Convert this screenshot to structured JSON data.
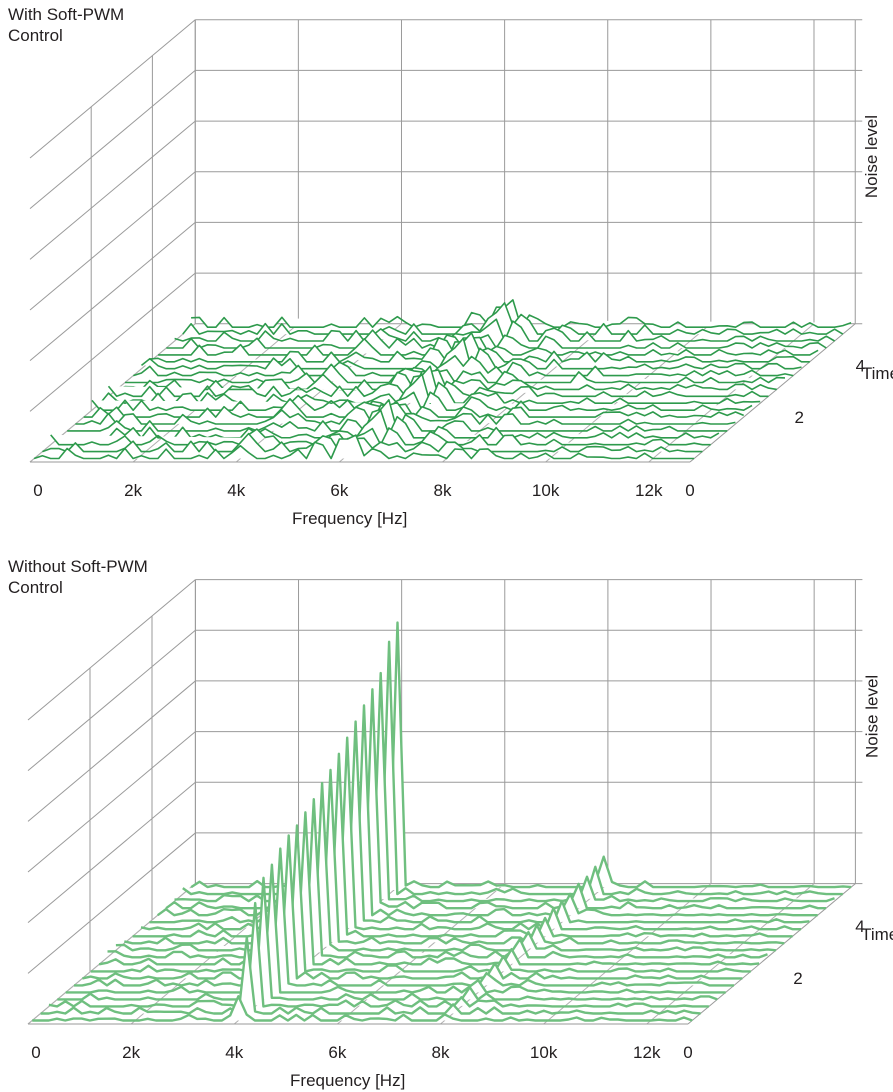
{
  "chart_data": [
    {
      "type": "line",
      "subtype": "3d-waterfall",
      "title": "With Soft-PWM Control",
      "xlabel": "Frequency [Hz]",
      "ylabel": "Time [s]",
      "zlabel": "Noise level",
      "xlim": [
        0,
        12800
      ],
      "ylim": [
        0,
        5.4
      ],
      "x_ticks": [
        "0",
        "2k",
        "4k",
        "6k",
        "8k",
        "10k",
        "12k"
      ],
      "y_ticks": [
        "0",
        "2",
        "4"
      ],
      "traces": 20,
      "peak_frequencies": [
        4000,
        5500,
        6000,
        6200,
        6600,
        7400
      ],
      "peak_levels": [
        0.06,
        0.07,
        0.09,
        0.12,
        0.08,
        0.05
      ],
      "color": "#2e9a4c"
    },
    {
      "type": "line",
      "subtype": "3d-waterfall",
      "title": "Without Soft-PWM Control",
      "xlabel": "Frequency [Hz]",
      "ylabel": "Time [s]",
      "zlabel": "Noise level",
      "xlim": [
        0,
        12800
      ],
      "ylim": [
        0,
        5.4
      ],
      "x_ticks": [
        "0",
        "2k",
        "4k",
        "6k",
        "8k",
        "10k",
        "12k"
      ],
      "y_ticks": [
        "0",
        "2",
        "4"
      ],
      "traces": 20,
      "peak_frequencies": [
        4000,
        8000
      ],
      "peak_levels_4k": [
        0.08,
        0.25,
        0.34,
        0.4,
        0.42,
        0.45,
        0.47,
        0.48,
        0.5,
        0.52,
        0.55,
        0.57,
        0.6,
        0.63,
        0.66,
        0.69,
        0.72,
        0.75,
        0.83,
        0.87
      ],
      "peak_levels_8k": [
        0.02,
        0.03,
        0.03,
        0.04,
        0.04,
        0.04,
        0.05,
        0.05,
        0.05,
        0.06,
        0.06,
        0.06,
        0.06,
        0.07,
        0.07,
        0.07,
        0.08,
        0.08,
        0.09,
        0.1
      ],
      "color": "#6fbf7f"
    }
  ]
}
